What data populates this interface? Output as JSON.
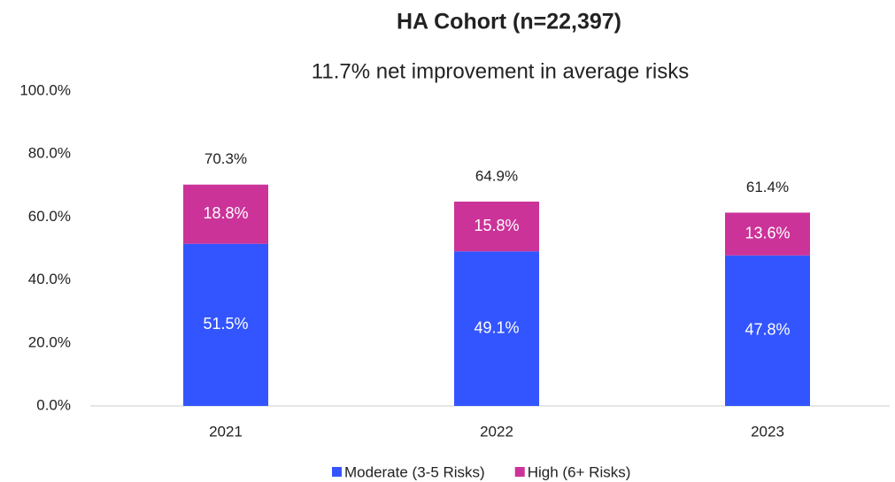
{
  "chart_data": {
    "type": "stacked_bar",
    "title": "HA Cohort (n=22,397)",
    "subtitle": "11.7% net improvement in average risks",
    "categories": [
      "2021",
      "2022",
      "2023"
    ],
    "series": [
      {
        "name": "Moderate (3-5 Risks)",
        "color": "#3355ff",
        "values": [
          51.5,
          49.1,
          47.8
        ],
        "value_labels": [
          "51.5%",
          "49.1%",
          "47.8%"
        ]
      },
      {
        "name": "High (6+ Risks)",
        "color": "#cc3399",
        "values": [
          18.8,
          15.8,
          13.6
        ],
        "value_labels": [
          "18.8%",
          "15.8%",
          "13.6%"
        ]
      }
    ],
    "totals": [
      70.3,
      64.9,
      61.4
    ],
    "total_labels": [
      "70.3%",
      "64.9%",
      "61.4%"
    ],
    "ylim": [
      0,
      100
    ],
    "yticks": [
      {
        "value": 0,
        "label": "0.0%"
      },
      {
        "value": 20,
        "label": "20.0%"
      },
      {
        "value": 40,
        "label": "40.0%"
      },
      {
        "value": 60,
        "label": "60.0%"
      },
      {
        "value": 80,
        "label": "80.0%"
      },
      {
        "value": 100,
        "label": "100.0%"
      }
    ],
    "legend": "bottom"
  }
}
